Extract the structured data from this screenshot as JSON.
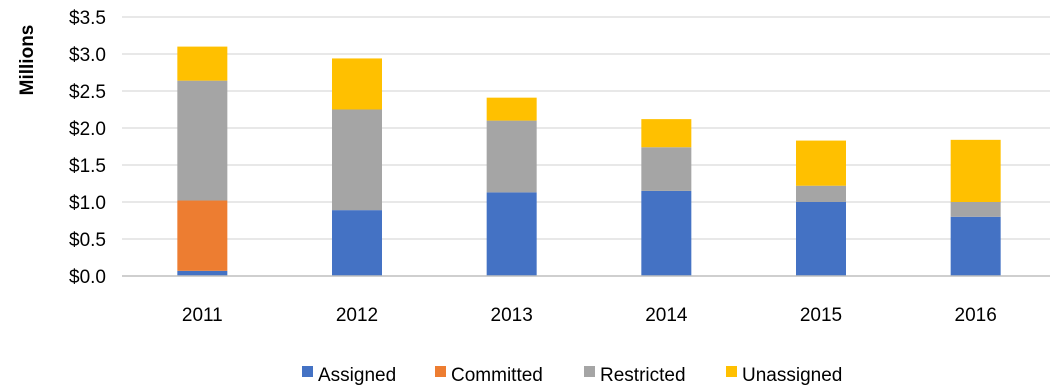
{
  "chart_data": {
    "type": "bar",
    "stacked": true,
    "categories": [
      "2011",
      "2012",
      "2013",
      "2014",
      "2015",
      "2016"
    ],
    "series": [
      {
        "name": "Assigned",
        "color": "#4472C4",
        "values": [
          0.07,
          0.89,
          1.13,
          1.15,
          1.0,
          0.8
        ]
      },
      {
        "name": "Committed",
        "color": "#ED7D31",
        "values": [
          0.95,
          0,
          0,
          0,
          0,
          0
        ]
      },
      {
        "name": "Restricted",
        "color": "#A5A5A5",
        "values": [
          1.62,
          1.36,
          0.97,
          0.59,
          0.22,
          0.2
        ]
      },
      {
        "name": "Unassigned",
        "color": "#FFC000",
        "values": [
          0.46,
          0.69,
          0.31,
          0.38,
          0.61,
          0.84
        ]
      }
    ],
    "ylabel": "Millions",
    "ylim": [
      0,
      3.5
    ],
    "yticks": [
      "$0.0",
      "$0.5",
      "$1.0",
      "$1.5",
      "$2.0",
      "$2.5",
      "$3.0",
      "$3.5"
    ],
    "ytick_values": [
      0,
      0.5,
      1.0,
      1.5,
      2.0,
      2.5,
      3.0,
      3.5
    ],
    "grid": true,
    "legend_position": "bottom"
  }
}
